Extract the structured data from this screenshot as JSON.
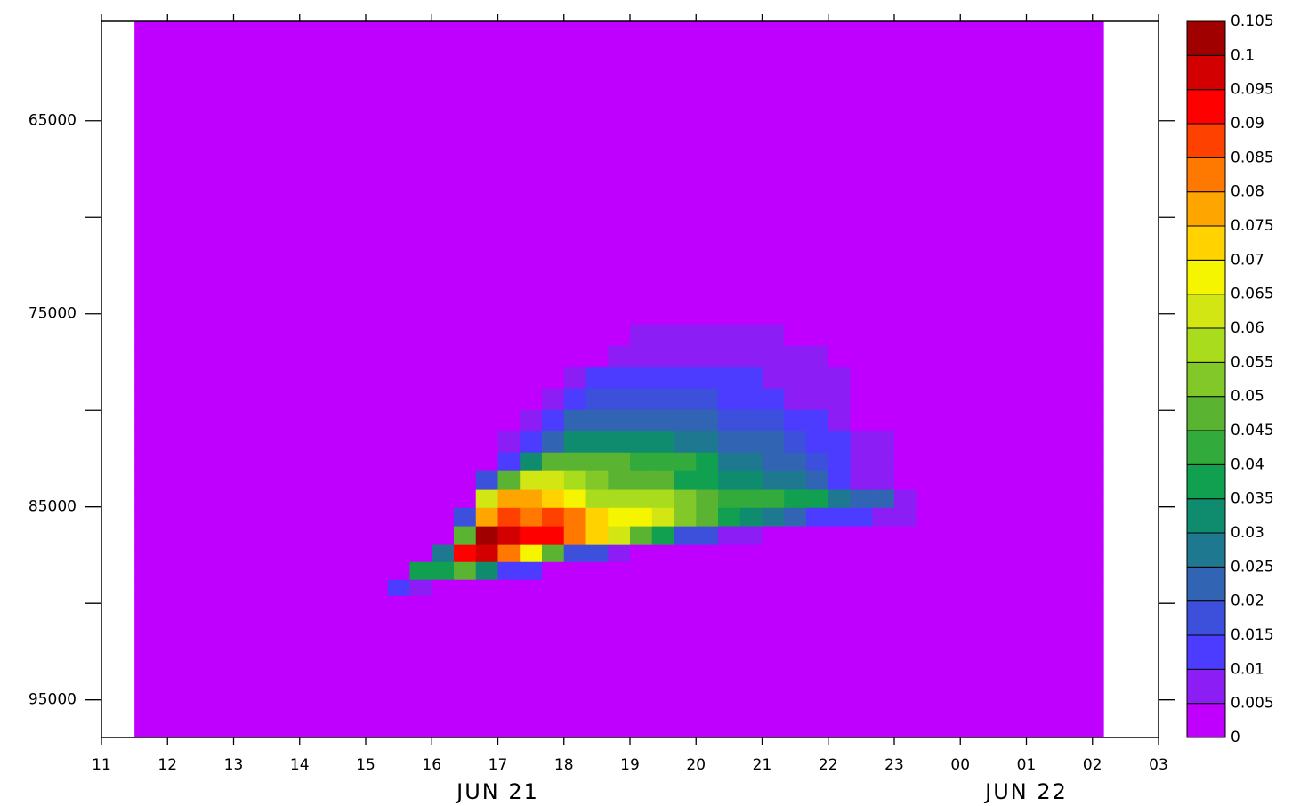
{
  "chart_data": {
    "type": "heatmap",
    "xlim": [
      11,
      27
    ],
    "xticks": [
      11,
      12,
      13,
      14,
      15,
      16,
      17,
      18,
      19,
      20,
      21,
      22,
      23,
      {
        "value": 24,
        "label": "00"
      },
      {
        "value": 25,
        "label": "01"
      },
      {
        "value": 26,
        "label": "02"
      },
      {
        "value": 27,
        "label": "03"
      }
    ],
    "x_date_labels": [
      {
        "value": 17,
        "label": "JUN 21"
      },
      {
        "value": 25,
        "label": "JUN 22"
      }
    ],
    "ylim": [
      59850,
      96950
    ],
    "yticks": [
      65000,
      {
        "value": 70000,
        "label": null
      },
      75000,
      {
        "value": 80000,
        "label": null
      },
      85000,
      {
        "value": 90000,
        "label": null
      },
      95000
    ],
    "x_edges": [
      11.5,
      15.3333,
      15.6667,
      16,
      16.3333,
      16.6667,
      17,
      17.3333,
      17.6667,
      18,
      18.3333,
      18.6667,
      19,
      19.3333,
      19.6667,
      20,
      20.3333,
      20.6667,
      21,
      21.3333,
      21.6667,
      22,
      22.3333,
      22.6667,
      23,
      23.3333,
      26.1667
    ],
    "y_edges": [
      59850,
      75550,
      76660,
      77770,
      78870,
      79980,
      81080,
      82190,
      83110,
      84120,
      85050,
      86010,
      86980,
      87860,
      88780,
      89610,
      96950
    ],
    "z": [
      [
        0.0025,
        0.0025,
        0.0025,
        0.0025,
        0.0025,
        0.0025,
        0.0025,
        0.0025,
        0.0025,
        0.0025,
        0.0025,
        0.0025,
        0.0025,
        0.0025,
        0.0025,
        0.0025,
        0.0025,
        0.0025,
        0.0025,
        0.0025,
        0.0025,
        0.0025,
        0.0025,
        0.0025,
        0.0025,
        0.0025
      ],
      [
        0.0025,
        0.0025,
        0.0025,
        0.0025,
        0.0025,
        0.0025,
        0.0025,
        0.0025,
        0.0025,
        0.0025,
        0.0025,
        0.0025,
        0.0075,
        0.0075,
        0.0075,
        0.0075,
        0.0075,
        0.0075,
        0.0075,
        0.0025,
        0.0025,
        0.0025,
        0.0025,
        0.0025,
        0.0025,
        0.0025
      ],
      [
        0.0025,
        0.0025,
        0.0025,
        0.0025,
        0.0025,
        0.0025,
        0.0025,
        0.0025,
        0.0025,
        0.0025,
        0.0025,
        0.0075,
        0.0075,
        0.0075,
        0.0075,
        0.0075,
        0.0075,
        0.0075,
        0.0075,
        0.0075,
        0.0075,
        0.0025,
        0.0025,
        0.0025,
        0.0025,
        0.0025
      ],
      [
        0.0025,
        0.0025,
        0.0025,
        0.0025,
        0.0025,
        0.0025,
        0.0025,
        0.0025,
        0.0025,
        0.0075,
        0.0125,
        0.0125,
        0.0125,
        0.0125,
        0.0125,
        0.0125,
        0.0125,
        0.0125,
        0.0075,
        0.0075,
        0.0075,
        0.0075,
        0.0025,
        0.0025,
        0.0025,
        0.0025
      ],
      [
        0.0025,
        0.0025,
        0.0025,
        0.0025,
        0.0025,
        0.0025,
        0.0025,
        0.0025,
        0.0075,
        0.0125,
        0.0175,
        0.0175,
        0.0175,
        0.0175,
        0.0175,
        0.0175,
        0.0125,
        0.0125,
        0.0125,
        0.0075,
        0.0075,
        0.0075,
        0.0025,
        0.0025,
        0.0025,
        0.0025
      ],
      [
        0.0025,
        0.0025,
        0.0025,
        0.0025,
        0.0025,
        0.0025,
        0.0025,
        0.0075,
        0.0125,
        0.0225,
        0.0225,
        0.0225,
        0.0225,
        0.0225,
        0.0225,
        0.0225,
        0.0175,
        0.0175,
        0.0175,
        0.0125,
        0.0125,
        0.0075,
        0.0025,
        0.0025,
        0.0025,
        0.0025
      ],
      [
        0.0025,
        0.0025,
        0.0025,
        0.0025,
        0.0025,
        0.0025,
        0.0075,
        0.0125,
        0.0225,
        0.0325,
        0.0325,
        0.0325,
        0.0325,
        0.0325,
        0.0275,
        0.0275,
        0.0225,
        0.0225,
        0.0225,
        0.0175,
        0.0125,
        0.0125,
        0.0075,
        0.0075,
        0.0025,
        0.0025
      ],
      [
        0.0025,
        0.0025,
        0.0025,
        0.0025,
        0.0025,
        0.0025,
        0.0125,
        0.0325,
        0.0475,
        0.0475,
        0.0475,
        0.0475,
        0.0425,
        0.0425,
        0.0425,
        0.0375,
        0.0275,
        0.0275,
        0.0225,
        0.0225,
        0.0175,
        0.0125,
        0.0075,
        0.0075,
        0.0025,
        0.0025
      ],
      [
        0.0025,
        0.0025,
        0.0025,
        0.0025,
        0.0025,
        0.0175,
        0.0475,
        0.0625,
        0.0625,
        0.0575,
        0.0525,
        0.0475,
        0.0475,
        0.0475,
        0.0375,
        0.0375,
        0.0325,
        0.0325,
        0.0275,
        0.0275,
        0.0225,
        0.0125,
        0.0075,
        0.0075,
        0.0025,
        0.0025
      ],
      [
        0.0025,
        0.0025,
        0.0025,
        0.0025,
        0.0025,
        0.0625,
        0.0775,
        0.0775,
        0.0725,
        0.0675,
        0.0575,
        0.0575,
        0.0575,
        0.0575,
        0.0525,
        0.0475,
        0.0425,
        0.0425,
        0.0425,
        0.0375,
        0.0375,
        0.0275,
        0.0225,
        0.0225,
        0.0075,
        0.0025
      ],
      [
        0.0025,
        0.0025,
        0.0025,
        0.0025,
        0.0175,
        0.0775,
        0.0875,
        0.0825,
        0.0875,
        0.0825,
        0.0725,
        0.0675,
        0.0675,
        0.0625,
        0.0525,
        0.0475,
        0.0375,
        0.0325,
        0.0275,
        0.0225,
        0.0125,
        0.0125,
        0.0125,
        0.0075,
        0.0075,
        0.0025
      ],
      [
        0.0025,
        0.0025,
        0.0025,
        0.0025,
        0.0475,
        0.1025,
        0.0975,
        0.0925,
        0.0925,
        0.0825,
        0.0725,
        0.0625,
        0.0475,
        0.0375,
        0.0175,
        0.0175,
        0.0075,
        0.0075,
        0.0025,
        0.0025,
        0.0025,
        0.0025,
        0.0025,
        0.0025,
        0.0025,
        0.0025
      ],
      [
        0.0025,
        0.0025,
        0.0025,
        0.0275,
        0.0925,
        0.0975,
        0.0825,
        0.0675,
        0.0475,
        0.0175,
        0.0175,
        0.0075,
        0.0025,
        0.0025,
        0.0025,
        0.0025,
        0.0025,
        0.0025,
        0.0025,
        0.0025,
        0.0025,
        0.0025,
        0.0025,
        0.0025,
        0.0025,
        0.0025
      ],
      [
        0.0025,
        0.0025,
        0.0375,
        0.0375,
        0.0475,
        0.0325,
        0.0125,
        0.0125,
        0.0025,
        0.0025,
        0.0025,
        0.0025,
        0.0025,
        0.0025,
        0.0025,
        0.0025,
        0.0025,
        0.0025,
        0.0025,
        0.0025,
        0.0025,
        0.0025,
        0.0025,
        0.0025,
        0.0025,
        0.0025
      ],
      [
        0.0025,
        0.0125,
        0.0075,
        0.0025,
        0.0025,
        0.0025,
        0.0025,
        0.0025,
        0.0025,
        0.0025,
        0.0025,
        0.0025,
        0.0025,
        0.0025,
        0.0025,
        0.0025,
        0.0025,
        0.0025,
        0.0025,
        0.0025,
        0.0025,
        0.0025,
        0.0025,
        0.0025,
        0.0025,
        0.0025
      ],
      [
        0.0025,
        0.0025,
        0.0025,
        0.0025,
        0.0025,
        0.0025,
        0.0025,
        0.0025,
        0.0025,
        0.0025,
        0.0025,
        0.0025,
        0.0025,
        0.0025,
        0.0025,
        0.0025,
        0.0025,
        0.0025,
        0.0025,
        0.0025,
        0.0025,
        0.0025,
        0.0025,
        0.0025,
        0.0025,
        0.0025
      ]
    ],
    "colorbar": {
      "levels": [
        0,
        0.005,
        0.01,
        0.015,
        0.02,
        0.025,
        0.03,
        0.035,
        0.04,
        0.045,
        0.05,
        0.055,
        0.06,
        0.065,
        0.07,
        0.075,
        0.08,
        0.085,
        0.09,
        0.095,
        0.1,
        0.105
      ],
      "colors": [
        "#c000ff",
        "#8c1ef5",
        "#4b3cff",
        "#3c50dc",
        "#3264b4",
        "#1e7890",
        "#0f8c6e",
        "#10a050",
        "#32aa3c",
        "#5ab432",
        "#82c828",
        "#aadc1e",
        "#d2e614",
        "#f5f500",
        "#ffd200",
        "#ffa500",
        "#ff7800",
        "#ff4100",
        "#ff0000",
        "#d20000",
        "#a00000"
      ]
    }
  }
}
